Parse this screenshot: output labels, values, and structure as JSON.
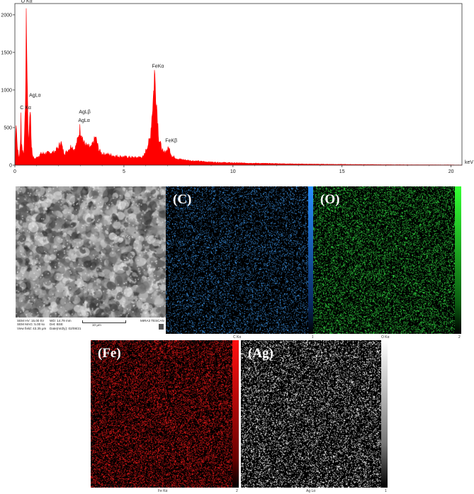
{
  "chart_data": {
    "type": "line",
    "title": "",
    "xlabel": "keV",
    "ylabel": "",
    "xlim": [
      0,
      20.5
    ],
    "ylim": [
      0,
      2150
    ],
    "xticks": [
      0,
      5,
      10,
      15,
      20
    ],
    "yticks": [
      0,
      500,
      1000,
      1500,
      2000
    ],
    "grid": false,
    "series": [
      {
        "color": "#ff0000",
        "x": [
          0.0,
          0.05,
          0.1,
          0.15,
          0.2,
          0.25,
          0.28,
          0.3,
          0.35,
          0.4,
          0.45,
          0.5,
          0.53,
          0.56,
          0.6,
          0.65,
          0.68,
          0.7,
          0.72,
          0.75,
          0.8,
          0.85,
          0.9,
          1.0,
          1.2,
          1.5,
          1.8,
          2.0,
          2.1,
          2.2,
          2.3,
          2.5,
          2.6,
          2.7,
          2.8,
          2.9,
          2.98,
          3.05,
          3.15,
          3.3,
          3.5,
          3.7,
          3.85,
          4.0,
          4.3,
          4.6,
          5.0,
          5.5,
          5.9,
          6.2,
          6.35,
          6.4,
          6.48,
          6.6,
          6.8,
          6.95,
          7.06,
          7.2,
          7.5,
          8.0,
          9.0,
          10.0,
          11.0,
          12.0,
          13.0,
          14.0,
          15.0,
          16.0,
          17.0,
          18.0,
          19.0,
          20.0,
          20.5
        ],
        "y": [
          0,
          650,
          300,
          150,
          100,
          250,
          700,
          300,
          200,
          150,
          400,
          1200,
          2100,
          1300,
          500,
          300,
          650,
          780,
          650,
          300,
          150,
          100,
          80,
          100,
          150,
          160,
          170,
          230,
          320,
          200,
          150,
          220,
          260,
          200,
          250,
          360,
          480,
          430,
          300,
          250,
          230,
          370,
          200,
          150,
          140,
          120,
          110,
          100,
          110,
          350,
          900,
          1230,
          900,
          350,
          160,
          190,
          230,
          120,
          80,
          60,
          40,
          30,
          25,
          20,
          15,
          12,
          10,
          8,
          6,
          5,
          4,
          3,
          2
        ]
      }
    ],
    "annotations": [
      "O Kα",
      "C Kα",
      "AgLα",
      "AgLβ",
      "AgLα",
      "FeKα",
      "FeKβ"
    ]
  },
  "maps": {
    "c_label": "(C)",
    "o_label": "(O)",
    "fe_label": "(Fe)",
    "ag_label": "(Ag)",
    "c_caption": "C Kα",
    "o_caption": "O Kα",
    "fe_caption": "Fe Kα",
    "ag_caption": "Ag Lα",
    "c_max": "1",
    "o_max": "2",
    "fe_max": "2",
    "ag_max": "1",
    "c_color": "#3a8fe0",
    "o_color": "#33dd44",
    "fe_color": "#e01818",
    "ag_color": "#ffffff"
  },
  "sem": {
    "line1a": "SEM HV: 15.00 kV",
    "line1b": "WD: 14.79 mm",
    "line2a": "SEM MAG: 5.00 kx",
    "line2b": "Det: BSE",
    "line3a": "View field: 43.35 μm",
    "line3b": "Date(m/d/y): 02/08/21",
    "scale": "10 μm",
    "brand": "MIRA3 TESCAN"
  }
}
